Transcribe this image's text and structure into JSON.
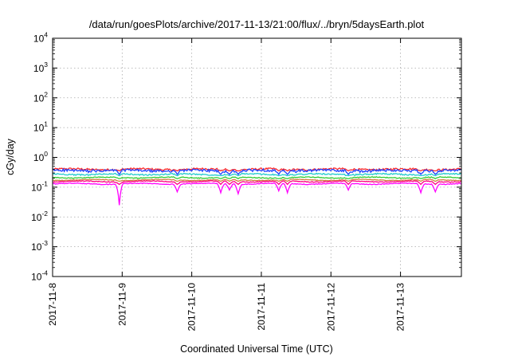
{
  "chart_data": {
    "type": "line",
    "title": "/data/run/goesPlots/archive/2017-11-13/21:00/flux/../bryn/5daysEarth.plot",
    "xlabel": "Coordinated Universal Time (UTC)",
    "ylabel": "cGy/day",
    "yscale": "log",
    "ylim": [
      0.0001,
      10000
    ],
    "yticks": [
      {
        "base": "10",
        "exp": "4",
        "value": 10000
      },
      {
        "base": "10",
        "exp": "3",
        "value": 1000
      },
      {
        "base": "10",
        "exp": "2",
        "value": 100
      },
      {
        "base": "10",
        "exp": "1",
        "value": 10
      },
      {
        "base": "10",
        "exp": "0",
        "value": 1
      },
      {
        "base": "10",
        "exp": "-1",
        "value": 0.1
      },
      {
        "base": "10",
        "exp": "-2",
        "value": 0.01
      },
      {
        "base": "10",
        "exp": "-3",
        "value": 0.001
      },
      {
        "base": "10",
        "exp": "-4",
        "value": 0.0001
      }
    ],
    "xlim": [
      "2017-11-08 00:00",
      "2017-11-13 21:00"
    ],
    "xticks": [
      "2017-11-8",
      "2017-11-9",
      "2017-11-10",
      "2017-11-11",
      "2017-11-12",
      "2017-11-13"
    ],
    "grid": true,
    "legend": "none",
    "series": [
      {
        "color": "#ff2a2a",
        "base": 0.4,
        "noise": 0.07,
        "dip": 0.12
      },
      {
        "color": "#2040ff",
        "base": 0.36,
        "noise": 0.1,
        "dip": 0.25
      },
      {
        "color": "#22cccc",
        "base": 0.27,
        "noise": 0.05,
        "dip": 0.1
      },
      {
        "color": "#33cc33",
        "base": 0.21,
        "noise": 0.03,
        "dip": 0.08
      },
      {
        "color": "#d08040",
        "base": 0.175,
        "noise": 0.025,
        "dip": 0.1
      },
      {
        "color": "#ff0080",
        "base": 0.155,
        "noise": 0.025,
        "dip": 0.2
      },
      {
        "color": "#ff00ff",
        "base": 0.13,
        "noise": 0.03,
        "dip": 0.55
      }
    ],
    "dips": [
      {
        "date": "2017-11-08 23:00",
        "min": 0.025
      },
      {
        "date": "2017-11-09 19:00",
        "min": 0.07
      },
      {
        "date": "2017-11-10 10:00",
        "min": 0.065
      },
      {
        "date": "2017-11-10 13:00",
        "min": 0.08
      },
      {
        "date": "2017-11-10 16:00",
        "min": 0.06
      },
      {
        "date": "2017-11-11 06:00",
        "min": 0.075
      },
      {
        "date": "2017-11-11 09:00",
        "min": 0.065
      },
      {
        "date": "2017-11-12 06:00",
        "min": 0.08
      },
      {
        "date": "2017-11-13 07:00",
        "min": 0.065
      },
      {
        "date": "2017-11-13 12:00",
        "min": 0.07
      }
    ]
  }
}
